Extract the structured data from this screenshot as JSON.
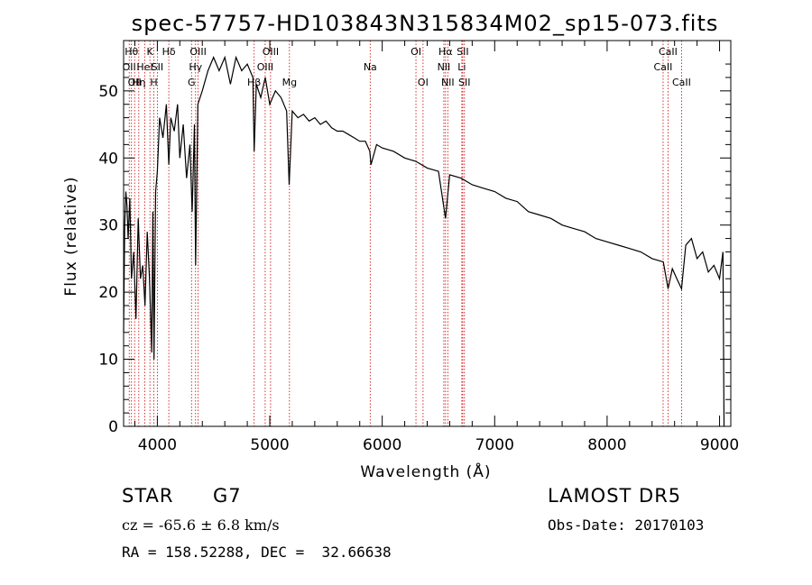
{
  "chart_data": {
    "type": "line",
    "title": "spec-57757-HD103843N315834M02_sp15-073.fits",
    "xlabel": "Wavelength (Å)",
    "ylabel": "Flux (relative)",
    "xlim": [
      3700,
      9100
    ],
    "ylim": [
      0,
      57.5
    ],
    "xticks": [
      4000,
      5000,
      6000,
      7000,
      8000,
      9000
    ],
    "yticks": [
      0,
      10,
      20,
      30,
      40,
      50
    ],
    "grid": false,
    "line_color": "#000000",
    "marker_color": "#cc0000",
    "series": [
      {
        "x": [
          3700,
          3710,
          3720,
          3730,
          3740,
          3755,
          3770,
          3790,
          3810,
          3830,
          3850,
          3870,
          3890,
          3910,
          3930,
          3950,
          3960,
          3970,
          3985,
          4000,
          4020,
          4050,
          4080,
          4102,
          4120,
          4150,
          4180,
          4200,
          4230,
          4260,
          4290,
          4310,
          4330,
          4340,
          4360,
          4400,
          4450,
          4500,
          4550,
          4600,
          4650,
          4700,
          4750,
          4800,
          4850,
          4861,
          4880,
          4920,
          4960,
          5000,
          5050,
          5100,
          5150,
          5172,
          5200,
          5250,
          5300,
          5350,
          5400,
          5450,
          5500,
          5550,
          5600,
          5650,
          5700,
          5750,
          5800,
          5850,
          5890,
          5900,
          5950,
          6000,
          6100,
          6200,
          6300,
          6400,
          6500,
          6563,
          6600,
          6700,
          6800,
          6900,
          7000,
          7100,
          7200,
          7300,
          7400,
          7500,
          7600,
          7700,
          7800,
          7900,
          8000,
          8100,
          8200,
          8300,
          8400,
          8500,
          8542,
          8580,
          8620,
          8662,
          8700,
          8750,
          8800,
          8850,
          8900,
          8950,
          9000,
          9030,
          9040
        ],
        "y": [
          14,
          30,
          35,
          33,
          28,
          34,
          22,
          26,
          16,
          31,
          22,
          24,
          18,
          29,
          22,
          11,
          32,
          10,
          35,
          38,
          46,
          43,
          48,
          39,
          46,
          44,
          48,
          40,
          45,
          37,
          42,
          32,
          45,
          24,
          48,
          50,
          53,
          55,
          53,
          55,
          51,
          55,
          53,
          54,
          52,
          41,
          51,
          49,
          52,
          48,
          50,
          49,
          47,
          36,
          47,
          46,
          46.5,
          45.5,
          46,
          45,
          45.5,
          44.5,
          44,
          44,
          43.5,
          43,
          42.5,
          42.5,
          41,
          39,
          42,
          41.5,
          41,
          40,
          39.5,
          38.5,
          38,
          31,
          37.5,
          37,
          36,
          35.5,
          35,
          34,
          33.5,
          32,
          31.5,
          31,
          30,
          29.5,
          29,
          28,
          27.5,
          27,
          26.5,
          26,
          25,
          24.5,
          20.5,
          23.5,
          22,
          20.5,
          27,
          28,
          25,
          26,
          23,
          24,
          22,
          26,
          0
        ]
      }
    ],
    "line_markers": [
      {
        "wave": 3750,
        "label": "OII",
        "row": 1
      },
      {
        "wave": 3770,
        "label": "Hθ",
        "row": 0
      },
      {
        "wave": 3798,
        "label": "OII",
        "row": 2
      },
      {
        "wave": 3835,
        "label": "Hη",
        "row": 2
      },
      {
        "wave": 3889,
        "label": "HeI",
        "row": 1
      },
      {
        "wave": 3934,
        "label": "K",
        "row": 0
      },
      {
        "wave": 3969,
        "label": "H",
        "row": 2
      },
      {
        "wave": 4000,
        "label": "SII",
        "row": 1
      },
      {
        "wave": 4102,
        "label": "Hδ",
        "row": 0
      },
      {
        "wave": 4304,
        "label": "G",
        "row": 2
      },
      {
        "wave": 4340,
        "label": "Hγ",
        "row": 1
      },
      {
        "wave": 4363,
        "label": "OIII",
        "row": 0
      },
      {
        "wave": 4861,
        "label": "Hβ",
        "row": 2
      },
      {
        "wave": 4959,
        "label": "OIII",
        "row": 1
      },
      {
        "wave": 5007,
        "label": "OIII",
        "row": 0
      },
      {
        "wave": 5175,
        "label": "Mg",
        "row": 2
      },
      {
        "wave": 5893,
        "label": "Na",
        "row": 1
      },
      {
        "wave": 6300,
        "label": "OI",
        "row": 0
      },
      {
        "wave": 6363,
        "label": "OI",
        "row": 2
      },
      {
        "wave": 6548,
        "label": "NII",
        "row": 1
      },
      {
        "wave": 6563,
        "label": "Hα",
        "row": 0
      },
      {
        "wave": 6583,
        "label": "NII",
        "row": 2
      },
      {
        "wave": 6708,
        "label": "Li",
        "row": 1
      },
      {
        "wave": 6716,
        "label": "SII",
        "row": 0
      },
      {
        "wave": 6731,
        "label": "SII",
        "row": 2
      },
      {
        "wave": 8498,
        "label": "CaII",
        "row": 1
      },
      {
        "wave": 8542,
        "label": "CaII",
        "row": 0
      },
      {
        "wave": 8662,
        "label": "CaII",
        "row": 2
      }
    ]
  },
  "info": {
    "object_class": "STAR",
    "subclass": "G7",
    "survey": "LAMOST DR5",
    "velocity": "cz = -65.6 ± 6.8 km/s",
    "obs_date": "Obs-Date: 20170103",
    "coords": "RA = 158.52288, DEC =  32.66638"
  }
}
